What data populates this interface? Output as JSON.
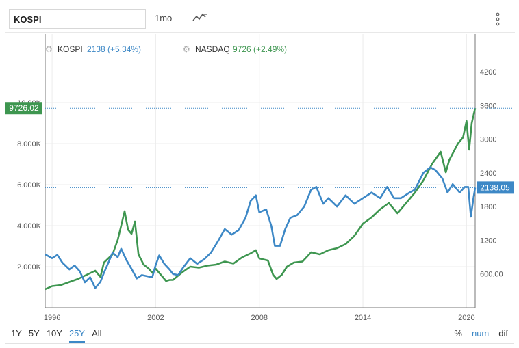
{
  "toolbar": {
    "symbol": "KOSPI",
    "interval": "1mo"
  },
  "legend": {
    "kospi": {
      "name": "KOSPI",
      "value_text": "2138 (+5.34%)"
    },
    "nasdaq": {
      "name": "NASDAQ",
      "value_text": "9726 (+2.49%)"
    }
  },
  "ranges": [
    "1Y",
    "5Y",
    "10Y",
    "25Y",
    "All"
  ],
  "active_range": "25Y",
  "modes": [
    "%",
    "num",
    "dif"
  ],
  "active_mode": "num",
  "colors": {
    "kospi": "#3d88c6",
    "nasdaq": "#3e9650",
    "nasdaq_tag": "#3e9650",
    "kospi_tag": "#3d88c6"
  },
  "chart_data": {
    "type": "line",
    "x_ticks": [
      "1996",
      "2002",
      "2008",
      "2014",
      "2020"
    ],
    "x_tick_years": [
      1996,
      2002,
      2008,
      2014,
      2020
    ],
    "xlim": [
      1995.6,
      2020.5
    ],
    "left_axis": {
      "ticks": [
        "2.000K",
        "4.000K",
        "6.000K",
        "8.000K",
        "10.00K"
      ],
      "tick_values": [
        2000,
        4000,
        6000,
        8000,
        10000
      ],
      "lim": [
        0,
        11500
      ],
      "series": "NASDAQ"
    },
    "right_axis": {
      "ticks": [
        "600.00",
        "1200",
        "1800",
        "2400",
        "3000",
        "3600",
        "4200"
      ],
      "tick_values": [
        600,
        1200,
        1800,
        2400,
        3000,
        3600,
        4200
      ],
      "lim": [
        0,
        4200
      ],
      "series": "KOSPI"
    },
    "last_value_tags": {
      "nasdaq": "9726.02",
      "kospi": "2138.05"
    },
    "series": [
      {
        "name": "NASDAQ",
        "axis": "left",
        "points": [
          [
            1995.6,
            900
          ],
          [
            1996.0,
            1050
          ],
          [
            1996.5,
            1100
          ],
          [
            1997.0,
            1250
          ],
          [
            1997.5,
            1400
          ],
          [
            1998.0,
            1600
          ],
          [
            1998.5,
            1800
          ],
          [
            1998.8,
            1500
          ],
          [
            1999.0,
            2200
          ],
          [
            1999.5,
            2600
          ],
          [
            1999.8,
            3300
          ],
          [
            2000.0,
            4000
          ],
          [
            2000.2,
            4700
          ],
          [
            2000.4,
            3800
          ],
          [
            2000.6,
            3600
          ],
          [
            2000.8,
            4200
          ],
          [
            2001.0,
            2600
          ],
          [
            2001.3,
            2100
          ],
          [
            2001.6,
            1900
          ],
          [
            2001.8,
            1700
          ],
          [
            2002.0,
            1900
          ],
          [
            2002.3,
            1600
          ],
          [
            2002.6,
            1300
          ],
          [
            2002.8,
            1350
          ],
          [
            2003.0,
            1350
          ],
          [
            2003.5,
            1700
          ],
          [
            2004.0,
            2000
          ],
          [
            2004.5,
            1950
          ],
          [
            2005.0,
            2050
          ],
          [
            2005.5,
            2100
          ],
          [
            2006.0,
            2250
          ],
          [
            2006.5,
            2150
          ],
          [
            2007.0,
            2450
          ],
          [
            2007.5,
            2650
          ],
          [
            2007.8,
            2800
          ],
          [
            2008.0,
            2400
          ],
          [
            2008.5,
            2300
          ],
          [
            2008.8,
            1600
          ],
          [
            2009.0,
            1400
          ],
          [
            2009.3,
            1600
          ],
          [
            2009.6,
            2000
          ],
          [
            2010.0,
            2200
          ],
          [
            2010.5,
            2250
          ],
          [
            2011.0,
            2700
          ],
          [
            2011.5,
            2600
          ],
          [
            2012.0,
            2800
          ],
          [
            2012.5,
            2900
          ],
          [
            2013.0,
            3100
          ],
          [
            2013.5,
            3500
          ],
          [
            2014.0,
            4100
          ],
          [
            2014.5,
            4400
          ],
          [
            2015.0,
            4800
          ],
          [
            2015.5,
            5100
          ],
          [
            2016.0,
            4600
          ],
          [
            2016.5,
            5100
          ],
          [
            2017.0,
            5600
          ],
          [
            2017.5,
            6200
          ],
          [
            2018.0,
            7000
          ],
          [
            2018.5,
            7600
          ],
          [
            2018.8,
            6600
          ],
          [
            2019.0,
            7200
          ],
          [
            2019.5,
            8000
          ],
          [
            2019.8,
            8300
          ],
          [
            2020.0,
            9100
          ],
          [
            2020.15,
            7700
          ],
          [
            2020.3,
            9000
          ],
          [
            2020.5,
            9726
          ]
        ]
      },
      {
        "name": "KOSPI",
        "axis": "right",
        "points": [
          [
            1995.6,
            950
          ],
          [
            1996.0,
            880
          ],
          [
            1996.3,
            940
          ],
          [
            1996.6,
            800
          ],
          [
            1997.0,
            680
          ],
          [
            1997.3,
            750
          ],
          [
            1997.6,
            650
          ],
          [
            1997.9,
            450
          ],
          [
            1998.2,
            540
          ],
          [
            1998.5,
            350
          ],
          [
            1998.8,
            460
          ],
          [
            1999.0,
            620
          ],
          [
            1999.3,
            830
          ],
          [
            1999.5,
            980
          ],
          [
            1999.8,
            900
          ],
          [
            2000.0,
            1050
          ],
          [
            2000.3,
            850
          ],
          [
            2000.6,
            690
          ],
          [
            2000.9,
            520
          ],
          [
            2001.2,
            580
          ],
          [
            2001.5,
            560
          ],
          [
            2001.8,
            540
          ],
          [
            2002.0,
            760
          ],
          [
            2002.2,
            930
          ],
          [
            2002.5,
            780
          ],
          [
            2002.8,
            680
          ],
          [
            2003.0,
            600
          ],
          [
            2003.3,
            580
          ],
          [
            2003.6,
            720
          ],
          [
            2004.0,
            880
          ],
          [
            2004.4,
            780
          ],
          [
            2004.8,
            860
          ],
          [
            2005.2,
            980
          ],
          [
            2005.6,
            1180
          ],
          [
            2006.0,
            1400
          ],
          [
            2006.4,
            1300
          ],
          [
            2006.8,
            1380
          ],
          [
            2007.2,
            1600
          ],
          [
            2007.5,
            1900
          ],
          [
            2007.8,
            2000
          ],
          [
            2008.0,
            1700
          ],
          [
            2008.4,
            1750
          ],
          [
            2008.7,
            1450
          ],
          [
            2008.9,
            1100
          ],
          [
            2009.2,
            1100
          ],
          [
            2009.5,
            1400
          ],
          [
            2009.8,
            1600
          ],
          [
            2010.2,
            1650
          ],
          [
            2010.6,
            1800
          ],
          [
            2011.0,
            2100
          ],
          [
            2011.3,
            2150
          ],
          [
            2011.7,
            1850
          ],
          [
            2012.0,
            1950
          ],
          [
            2012.5,
            1800
          ],
          [
            2013.0,
            2000
          ],
          [
            2013.5,
            1850
          ],
          [
            2014.0,
            1950
          ],
          [
            2014.5,
            2050
          ],
          [
            2015.0,
            1950
          ],
          [
            2015.4,
            2150
          ],
          [
            2015.8,
            1950
          ],
          [
            2016.2,
            1950
          ],
          [
            2016.7,
            2050
          ],
          [
            2017.0,
            2100
          ],
          [
            2017.5,
            2400
          ],
          [
            2017.9,
            2500
          ],
          [
            2018.2,
            2450
          ],
          [
            2018.6,
            2300
          ],
          [
            2018.9,
            2050
          ],
          [
            2019.2,
            2200
          ],
          [
            2019.6,
            2050
          ],
          [
            2019.9,
            2150
          ],
          [
            2020.1,
            2150
          ],
          [
            2020.25,
            1620
          ],
          [
            2020.4,
            1950
          ],
          [
            2020.5,
            2138
          ]
        ]
      }
    ]
  }
}
